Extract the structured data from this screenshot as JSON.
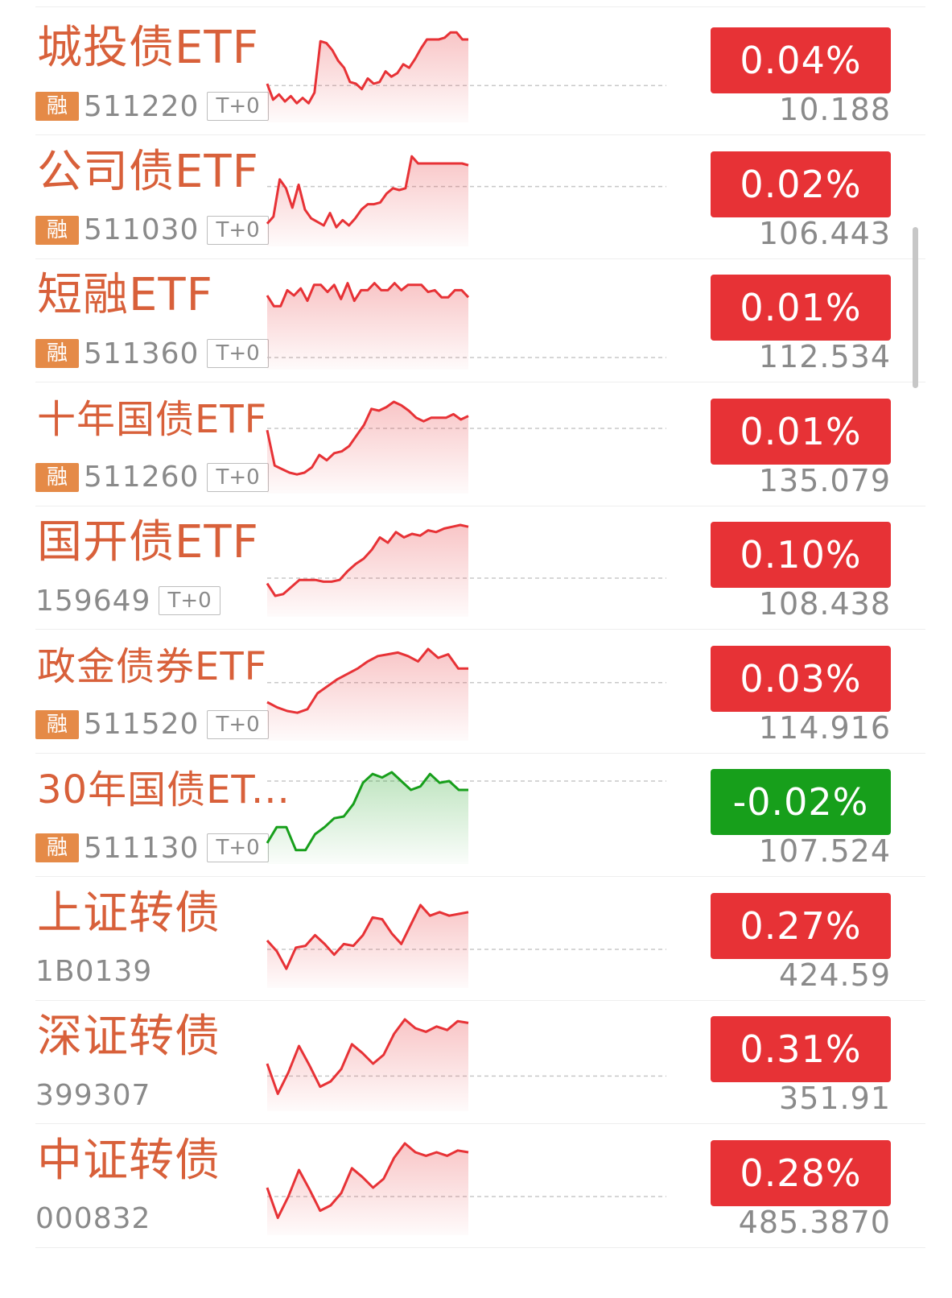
{
  "colors": {
    "up": "#e73236",
    "down": "#179f1b",
    "name": "#d8603a",
    "badge": "#e58a47"
  },
  "rows": [
    {
      "name": "城投债ETF",
      "code": "511220",
      "rong": "融",
      "tplus": "T+0",
      "change": "0.04%",
      "price": "10.188",
      "direction": "up",
      "baseline": 0.62,
      "spark": [
        0.6,
        0.78,
        0.72,
        0.8,
        0.74,
        0.82,
        0.76,
        0.82,
        0.7,
        0.12,
        0.14,
        0.22,
        0.34,
        0.42,
        0.58,
        0.6,
        0.66,
        0.54,
        0.6,
        0.58,
        0.46,
        0.52,
        0.48,
        0.38,
        0.42,
        0.32,
        0.2,
        0.1,
        0.1,
        0.1,
        0.08,
        0.02,
        0.02,
        0.1,
        0.1
      ]
    },
    {
      "name": "公司债ETF",
      "code": "511030",
      "rong": "融",
      "tplus": "T+0",
      "change": "0.02%",
      "price": "106.443",
      "direction": "up",
      "baseline": 0.36,
      "spark": [
        0.78,
        0.7,
        0.28,
        0.38,
        0.6,
        0.34,
        0.62,
        0.72,
        0.76,
        0.8,
        0.66,
        0.82,
        0.74,
        0.8,
        0.72,
        0.62,
        0.56,
        0.56,
        0.54,
        0.44,
        0.38,
        0.4,
        0.38,
        0.02,
        0.1,
        0.1,
        0.1,
        0.1,
        0.1,
        0.1,
        0.1,
        0.1,
        0.12
      ]
    },
    {
      "name": "短融ETF",
      "code": "511360",
      "rong": "融",
      "tplus": "T+0",
      "change": "0.01%",
      "price": "112.534",
      "direction": "up",
      "baseline": 0.9,
      "spark": [
        0.2,
        0.32,
        0.32,
        0.14,
        0.2,
        0.12,
        0.26,
        0.08,
        0.08,
        0.16,
        0.08,
        0.24,
        0.06,
        0.26,
        0.14,
        0.14,
        0.06,
        0.14,
        0.14,
        0.06,
        0.14,
        0.08,
        0.08,
        0.08,
        0.16,
        0.14,
        0.22,
        0.22,
        0.14,
        0.14,
        0.22
      ]
    },
    {
      "name": "十年国债ETF",
      "code": "511260",
      "rong": "融",
      "tplus": "T+0",
      "change": "0.01%",
      "price": "135.079",
      "direction": "up",
      "baseline": 0.3,
      "spark": [
        0.32,
        0.72,
        0.76,
        0.8,
        0.82,
        0.8,
        0.74,
        0.6,
        0.66,
        0.58,
        0.56,
        0.5,
        0.38,
        0.26,
        0.08,
        0.1,
        0.06,
        0.0,
        0.04,
        0.1,
        0.18,
        0.22,
        0.18,
        0.18,
        0.18,
        0.14,
        0.2,
        0.16
      ]
    },
    {
      "name": "国开债ETF",
      "code": "159649",
      "rong": "",
      "tplus": "T+0",
      "change": "0.10%",
      "price": "108.438",
      "direction": "up",
      "baseline": 0.6,
      "spark": [
        0.66,
        0.8,
        0.78,
        0.7,
        0.62,
        0.62,
        0.62,
        0.64,
        0.64,
        0.62,
        0.52,
        0.44,
        0.38,
        0.28,
        0.14,
        0.2,
        0.08,
        0.14,
        0.1,
        0.12,
        0.06,
        0.08,
        0.04,
        0.02,
        0.0,
        0.02
      ]
    },
    {
      "name": "政金债券ETF",
      "code": "511520",
      "rong": "融",
      "tplus": "T+0",
      "change": "0.03%",
      "price": "114.916",
      "direction": "up",
      "baseline": 0.38,
      "spark": [
        0.6,
        0.66,
        0.7,
        0.72,
        0.68,
        0.5,
        0.42,
        0.34,
        0.28,
        0.22,
        0.14,
        0.08,
        0.06,
        0.04,
        0.08,
        0.14,
        0.0,
        0.1,
        0.06,
        0.22,
        0.22
      ]
    },
    {
      "name": "30年国债ET...",
      "code": "511130",
      "rong": "融",
      "tplus": "T+0",
      "change": "-0.02%",
      "price": "107.524",
      "direction": "down",
      "baseline": 0.1,
      "spark": [
        0.8,
        0.62,
        0.62,
        0.88,
        0.88,
        0.7,
        0.62,
        0.52,
        0.5,
        0.36,
        0.12,
        0.02,
        0.06,
        0.0,
        0.1,
        0.2,
        0.16,
        0.02,
        0.12,
        0.1,
        0.2,
        0.2
      ]
    },
    {
      "name": "上证转债",
      "code": "1B0139",
      "rong": "",
      "tplus": "",
      "change": "0.27%",
      "price": "424.59",
      "direction": "up",
      "baseline": 0.6,
      "spark": [
        0.5,
        0.62,
        0.82,
        0.58,
        0.56,
        0.44,
        0.54,
        0.66,
        0.54,
        0.56,
        0.44,
        0.24,
        0.26,
        0.42,
        0.54,
        0.32,
        0.1,
        0.22,
        0.18,
        0.22,
        0.2,
        0.18
      ]
    },
    {
      "name": "深证转债",
      "code": "399307",
      "rong": "",
      "tplus": "",
      "change": "0.31%",
      "price": "351.91",
      "direction": "up",
      "baseline": 0.64,
      "spark": [
        0.5,
        0.84,
        0.6,
        0.3,
        0.52,
        0.76,
        0.7,
        0.56,
        0.28,
        0.38,
        0.5,
        0.4,
        0.16,
        0.0,
        0.1,
        0.14,
        0.08,
        0.12,
        0.02,
        0.04
      ]
    },
    {
      "name": "中证转债",
      "code": "000832",
      "rong": "",
      "tplus": "",
      "change": "0.28%",
      "price": "485.3870",
      "direction": "up",
      "baseline": 0.6,
      "spark": [
        0.5,
        0.84,
        0.6,
        0.3,
        0.52,
        0.76,
        0.7,
        0.56,
        0.28,
        0.38,
        0.5,
        0.4,
        0.16,
        0.0,
        0.1,
        0.14,
        0.1,
        0.14,
        0.08,
        0.1
      ]
    }
  ]
}
